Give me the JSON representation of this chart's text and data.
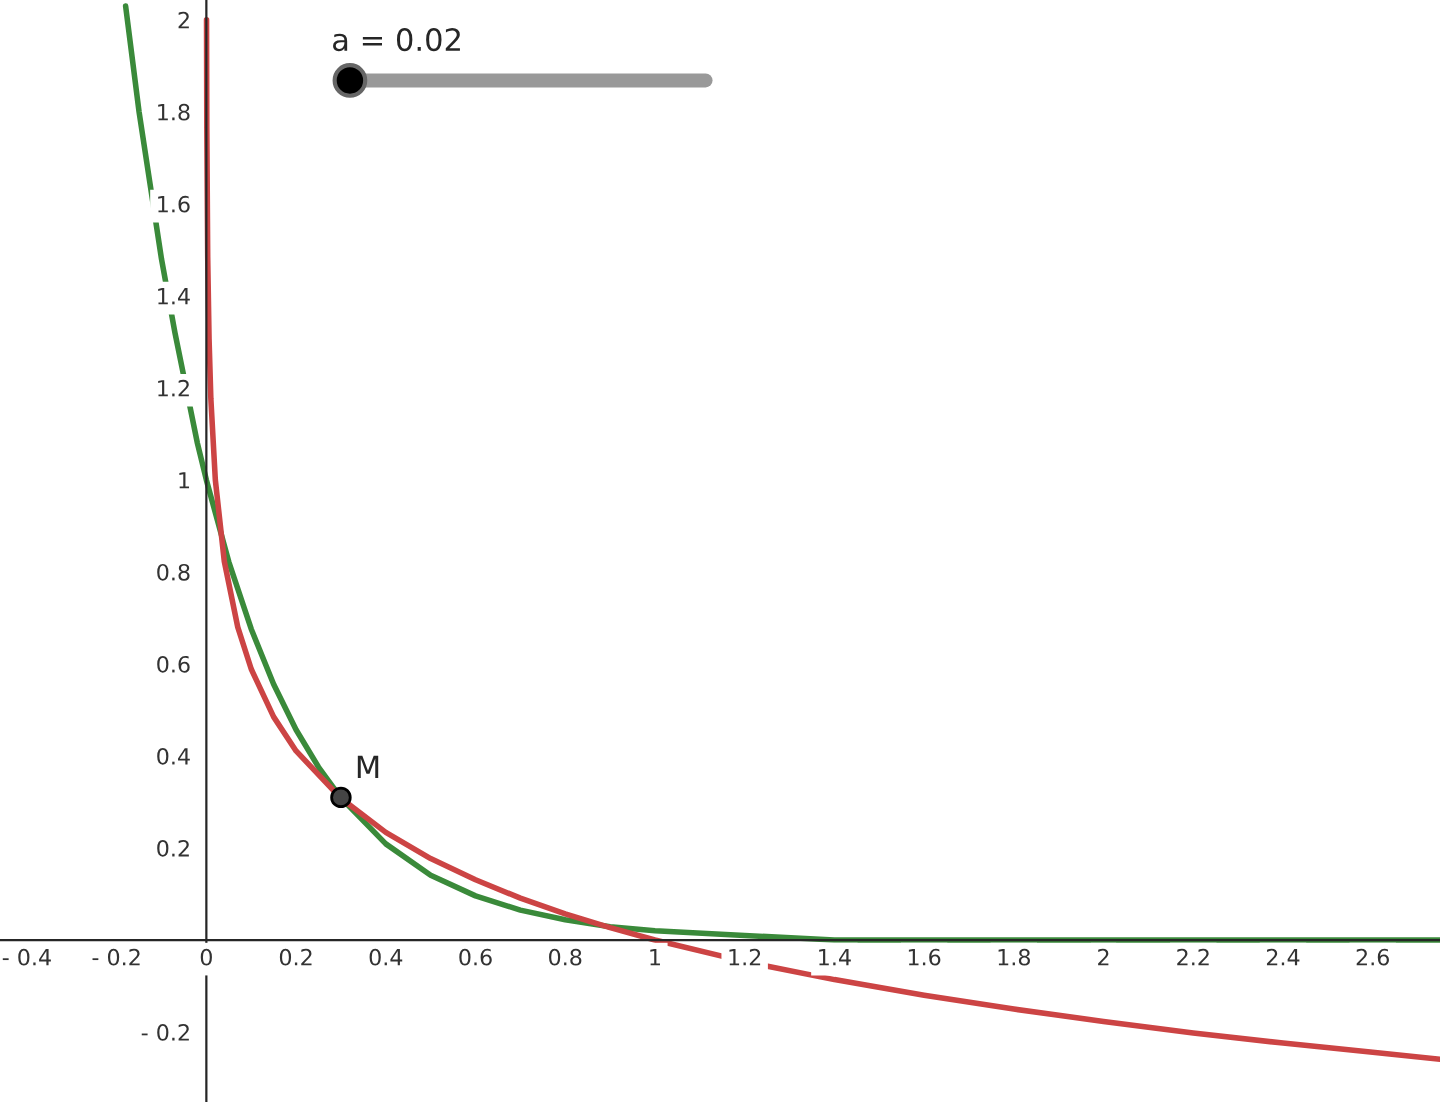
{
  "chart_data": {
    "type": "line",
    "xlim": [
      -0.46,
      2.75
    ],
    "ylim": [
      -0.352,
      2.043
    ],
    "xticks": [
      {
        "value": -0.4,
        "label": "- 0.4"
      },
      {
        "value": -0.2,
        "label": "- 0.2"
      },
      0,
      0.2,
      0.4,
      0.6,
      0.8,
      1,
      1.2,
      1.4,
      1.6,
      1.8,
      2,
      2.2,
      2.4,
      2.6
    ],
    "yticks": [
      {
        "value": -0.2,
        "label": "- 0.2"
      },
      0.2,
      0.4,
      0.6,
      0.8,
      1,
      1.2,
      1.4,
      1.6,
      1.8,
      2
    ],
    "grid": false,
    "legend": false,
    "marker": "none",
    "line_style": "solid",
    "series": [
      {
        "color": "#3a8a3a",
        "x": [
          -0.18,
          -0.15,
          -0.1,
          -0.07,
          -0.02,
          0,
          0.05,
          0.1,
          0.15,
          0.2,
          0.25,
          0.3,
          0.4,
          0.5,
          0.6,
          0.7,
          0.8,
          0.9,
          1.0,
          1.2,
          1.4,
          1.6,
          2.0,
          2.4,
          2.75
        ],
        "values": [
          2.03,
          1.8,
          1.48,
          1.32,
          1.08,
          1,
          0.822,
          0.676,
          0.556,
          0.457,
          0.376,
          0.309,
          0.209,
          0.141,
          0.096,
          0.065,
          0.044,
          0.029,
          0.02,
          0.01,
          0,
          0,
          0,
          0,
          0
        ]
      },
      {
        "color": "#cc4444",
        "x": [
          0.0004,
          0.001,
          0.003,
          0.006,
          0.01,
          0.02,
          0.04,
          0.07,
          0.1,
          0.15,
          0.2,
          0.3,
          0.4,
          0.5,
          0.6,
          0.7,
          0.8,
          0.9,
          1.0,
          1.2,
          1.4,
          1.6,
          1.8,
          2.0,
          2.2,
          2.4,
          2.6,
          2.75
        ],
        "values": [
          2.0,
          1.766,
          1.485,
          1.308,
          1.177,
          1.0,
          0.823,
          0.68,
          0.589,
          0.485,
          0.411,
          0.308,
          0.234,
          0.177,
          0.131,
          0.091,
          0.057,
          0.027,
          0,
          -0.047,
          -0.086,
          -0.12,
          -0.15,
          -0.177,
          -0.202,
          -0.224,
          -0.244,
          -0.259
        ]
      },
      {
        "type": "scatter",
        "color": "#444444",
        "marker": "circle",
        "x": [
          0.3
        ],
        "values": [
          0.31
        ]
      }
    ],
    "annotations": [
      "a = 0.02",
      {
        "text": "M",
        "x": 0.3,
        "y": 0.31
      }
    ]
  }
}
